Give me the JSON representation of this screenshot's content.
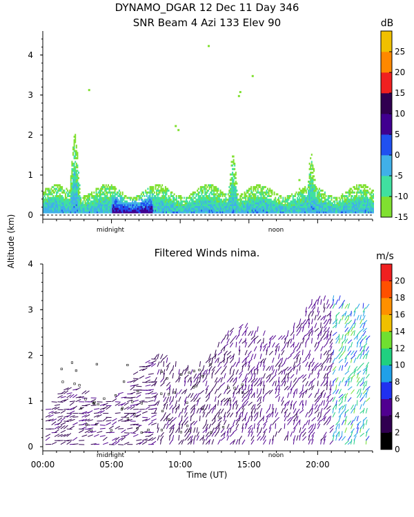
{
  "header": {
    "title_line1": "DYNAMO_DGAR  12 Dec 11 Day 346",
    "title_line2": "SNR Beam 4 Azi 133 Elev 90"
  },
  "shared": {
    "ylabel": "Altitude (km)",
    "xlabel": "Time (UT)",
    "marker_midnight": "midnight",
    "marker_noon": "noon"
  },
  "colors": {
    "snr_scale": [
      "#80e030",
      "#40e0a0",
      "#40b0e8",
      "#2050f0",
      "#400090",
      "#300050",
      "#f02020",
      "#ff8800",
      "#f0c000"
    ],
    "wind_scale": [
      "#000000",
      "#300050",
      "#500090",
      "#2030f0",
      "#20a0e8",
      "#20d080",
      "#70e030",
      "#f0c000",
      "#ff9000",
      "#ff5000",
      "#f02020"
    ]
  },
  "chart_data": [
    {
      "type": "heatmap",
      "title": "SNR Beam 4 Azi 133 Elev 90",
      "ylabel": "Altitude (km)",
      "xlim": [
        0,
        24
      ],
      "ylim": [
        0,
        4.6
      ],
      "yticks": [
        "0",
        "1",
        "2",
        "3",
        "4"
      ],
      "colorbar": {
        "unit": "dB",
        "ticks": [
          "-15",
          "-10",
          "-5",
          "0",
          "5",
          "10",
          "15",
          "20",
          "25"
        ],
        "range": [
          -15,
          30
        ]
      },
      "features": {
        "boundary_layer_top_km": 0.6,
        "strongest_echo_hours": [
          5,
          8
        ],
        "plumes": [
          {
            "t": 2.3,
            "top_km": 2.0
          },
          {
            "t": 13.8,
            "top_km": 1.5
          },
          {
            "t": 19.5,
            "top_km": 1.5
          }
        ]
      }
    },
    {
      "type": "scatter",
      "title": "Filtered Winds nima.",
      "xlabel": "Time (UT)",
      "ylabel": "Altitude (km)",
      "xlim": [
        0,
        24
      ],
      "ylim": [
        0,
        4
      ],
      "xticks": [
        "00:00",
        "05:00",
        "10:00",
        "15:00",
        "20:00"
      ],
      "yticks": [
        "0",
        "1",
        "2",
        "3",
        "4"
      ],
      "colorbar": {
        "unit": "m/s",
        "ticks": [
          "0",
          "2",
          "4",
          "6",
          "8",
          "10",
          "12",
          "14",
          "16",
          "18",
          "20"
        ],
        "range": [
          0,
          22
        ]
      },
      "features": {
        "wind_top_km": 3.2,
        "fast_winds_hours": [
          21,
          24
        ]
      }
    }
  ]
}
